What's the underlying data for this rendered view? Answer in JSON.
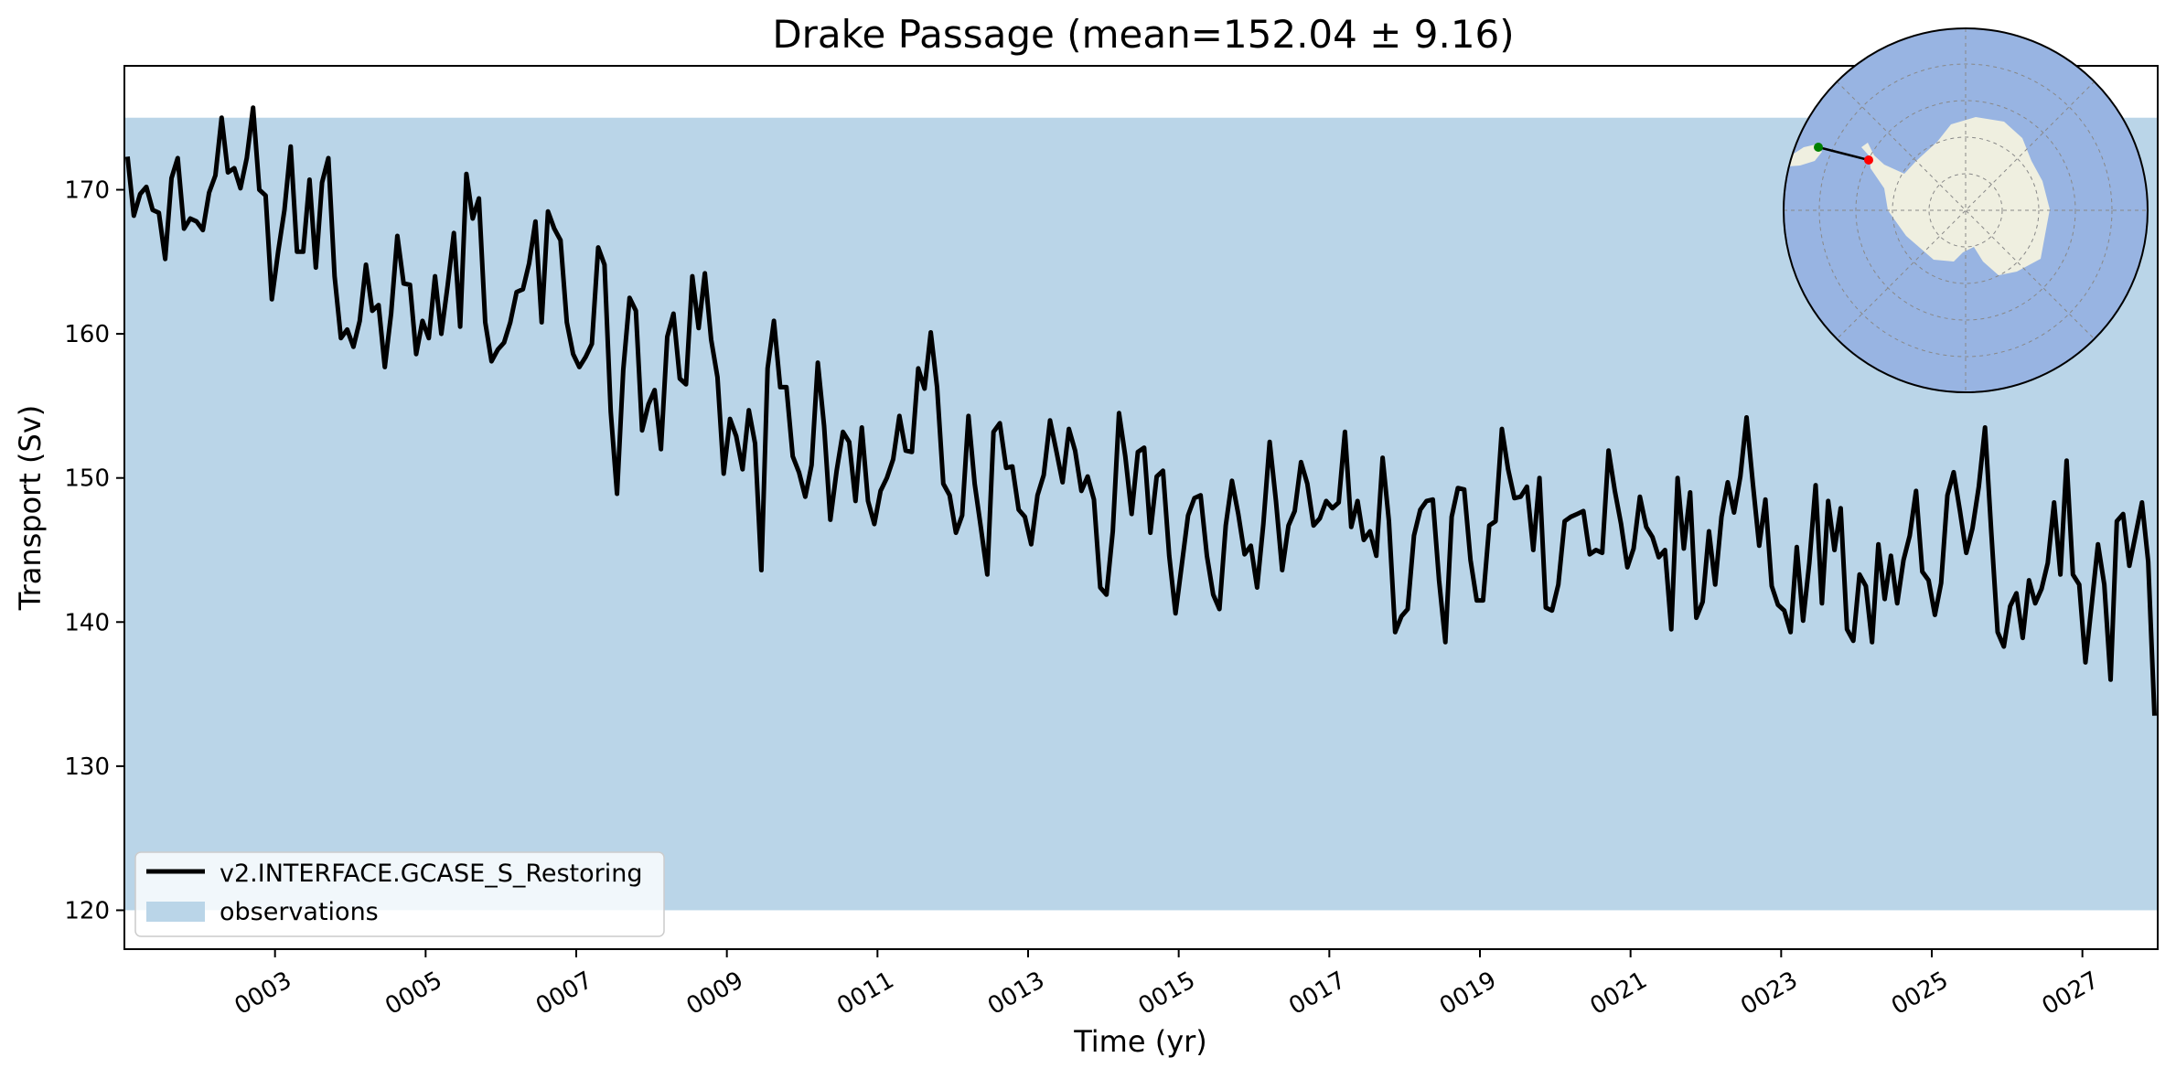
{
  "chart_data": {
    "type": "line",
    "title": "Drake Passage (mean=152.04 ± 9.16)",
    "xlabel": "Time (yr)",
    "ylabel": "Transport (Sv)",
    "xlim": [
      1.0,
      28.0
    ],
    "ylim": [
      117.3,
      178.6
    ],
    "x_ticks": [
      3,
      5,
      7,
      9,
      11,
      13,
      15,
      17,
      19,
      21,
      23,
      25,
      27
    ],
    "x_tick_labels": [
      "0003",
      "0005",
      "0007",
      "0009",
      "0011",
      "0013",
      "0015",
      "0017",
      "0019",
      "0021",
      "0023",
      "0025",
      "0027"
    ],
    "y_ticks": [
      120,
      130,
      140,
      150,
      160,
      170
    ],
    "y_tick_labels": [
      "120",
      "130",
      "140",
      "150",
      "160",
      "170"
    ],
    "observations": {
      "name": "observations",
      "low": 120,
      "high": 175,
      "color": "#bad5e8"
    },
    "series": [
      {
        "name": "v2.INTERFACE.GCASE_S_Restoring",
        "color": "#000000",
        "time_start": 1.0417,
        "time_step": 0.08333,
        "values": [
          172.3,
          168.2,
          169.7,
          170.2,
          168.6,
          168.4,
          165.2,
          170.8,
          172.2,
          167.3,
          168.0,
          167.8,
          167.2,
          169.8,
          171.0,
          175.0,
          171.2,
          171.5,
          170.1,
          172.2,
          175.7,
          170.0,
          169.6,
          162.4,
          165.7,
          168.6,
          173.0,
          165.7,
          165.7,
          170.7,
          164.6,
          170.5,
          172.2,
          164.0,
          159.7,
          160.3,
          159.1,
          160.9,
          164.8,
          161.6,
          162.0,
          157.7,
          161.4,
          166.8,
          163.5,
          163.4,
          158.6,
          160.9,
          159.7,
          164.0,
          160.0,
          163.3,
          167.0,
          160.5,
          171.1,
          168.0,
          169.4,
          160.8,
          158.1,
          158.9,
          159.4,
          160.8,
          162.9,
          163.1,
          164.9,
          167.8,
          160.8,
          168.5,
          167.3,
          166.5,
          160.8,
          158.6,
          157.7,
          158.4,
          159.3,
          166.0,
          164.8,
          154.6,
          148.9,
          157.5,
          162.5,
          161.6,
          153.3,
          155.1,
          156.1,
          152.0,
          159.8,
          161.4,
          156.9,
          156.5,
          164.0,
          160.4,
          164.2,
          159.6,
          157.0,
          150.3,
          154.1,
          152.9,
          150.6,
          154.7,
          152.4,
          143.6,
          157.6,
          160.9,
          156.3,
          156.3,
          151.5,
          150.4,
          148.7,
          150.9,
          158.0,
          153.6,
          147.1,
          150.5,
          153.2,
          152.5,
          148.4,
          153.5,
          148.4,
          146.8,
          149.1,
          150.0,
          151.3,
          154.3,
          151.9,
          151.8,
          157.6,
          156.2,
          160.1,
          156.3,
          149.6,
          148.8,
          146.2,
          147.4,
          154.3,
          149.6,
          146.5,
          143.3,
          153.2,
          153.8,
          150.7,
          150.8,
          147.8,
          147.3,
          145.4,
          148.8,
          150.2,
          154.0,
          151.9,
          149.7,
          153.4,
          151.9,
          149.1,
          150.1,
          148.5,
          142.4,
          141.9,
          146.3,
          154.5,
          151.5,
          147.5,
          151.8,
          152.1,
          146.2,
          150.1,
          150.5,
          144.6,
          140.6,
          144.0,
          147.4,
          148.6,
          148.8,
          144.6,
          141.9,
          140.9,
          146.7,
          149.8,
          147.5,
          144.7,
          145.3,
          142.4,
          146.8,
          152.5,
          148.4,
          143.6,
          146.7,
          147.7,
          151.1,
          149.6,
          146.7,
          147.2,
          148.4,
          147.9,
          148.3,
          153.2,
          146.6,
          148.4,
          145.7,
          146.3,
          144.6,
          151.4,
          147.0,
          139.3,
          140.4,
          140.9,
          146.0,
          147.8,
          148.4,
          148.5,
          142.9,
          138.6,
          147.3,
          149.3,
          149.2,
          144.3,
          141.5,
          141.5,
          146.7,
          147.0,
          153.4,
          150.6,
          148.6,
          148.7,
          149.4,
          145.0,
          150.0,
          141.0,
          140.8,
          142.6,
          147.0,
          147.3,
          147.5,
          147.7,
          144.7,
          145.0,
          144.8,
          151.9,
          149.1,
          146.8,
          143.8,
          145.1,
          148.7,
          146.6,
          145.9,
          144.5,
          145.0,
          139.5,
          150.0,
          145.1,
          149.0,
          140.3,
          141.4,
          146.3,
          142.6,
          147.3,
          149.7,
          147.6,
          150.1,
          154.2,
          149.6,
          145.3,
          148.5,
          142.5,
          141.2,
          140.8,
          139.3,
          145.2,
          140.1,
          144.1,
          149.5,
          141.3,
          148.4,
          145.0,
          147.9,
          139.5,
          138.7,
          143.3,
          142.5,
          138.6,
          145.4,
          141.6,
          144.6,
          141.3,
          144.3,
          146.0,
          149.1,
          143.5,
          142.9,
          140.5,
          142.7,
          148.8,
          150.4,
          147.7,
          144.8,
          146.5,
          149.4,
          153.5,
          146.2,
          139.3,
          138.3,
          141.1,
          142.0,
          138.9,
          142.9,
          141.3,
          142.3,
          144.1,
          148.3,
          143.3,
          151.2,
          143.3,
          142.6,
          137.2,
          141.3,
          145.4,
          142.6,
          136.0,
          147.0,
          147.5,
          143.9,
          146.1,
          148.3,
          144.2,
          133.5
        ]
      }
    ],
    "legend": {
      "placement": "lower-left",
      "entries": [
        "v2.INTERFACE.GCASE_S_Restoring",
        "observations"
      ]
    },
    "inset_map": {
      "type": "south-polar-stereographic",
      "ocean_color": "#98b4e2",
      "land_color": "#efefe0",
      "section_start_color": "#008000",
      "section_end_color": "#ff0000"
    }
  }
}
